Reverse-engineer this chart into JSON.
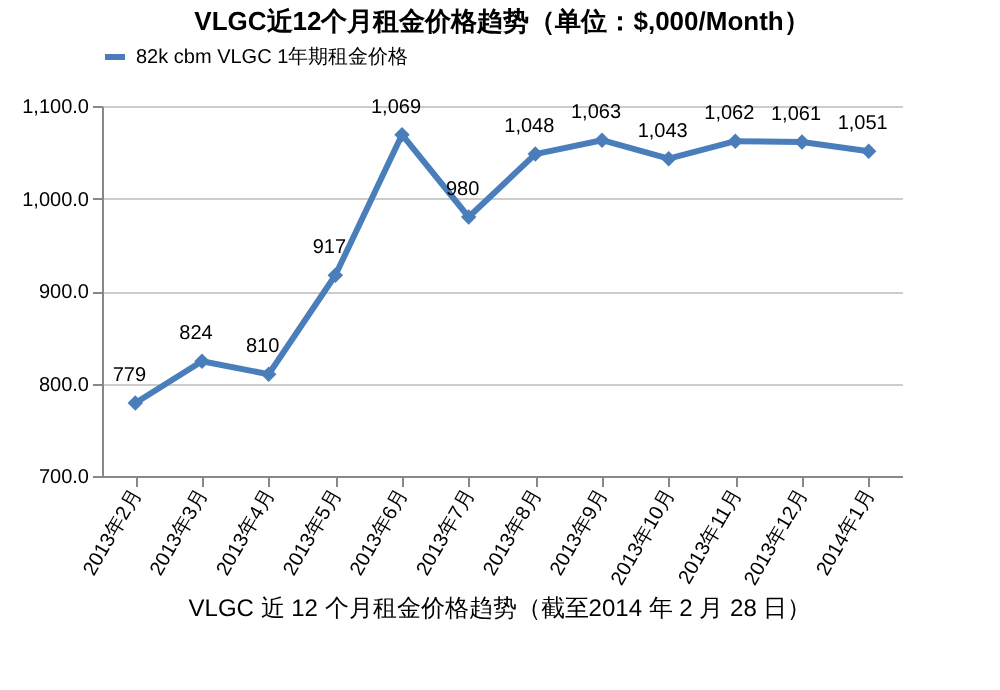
{
  "chart_data": {
    "type": "line",
    "title": "VLGC近12个月租金价格趋势（单位：$,000/Month）",
    "categories": [
      "2013年2月",
      "2013年3月",
      "2013年4月",
      "2013年5月",
      "2013年6月",
      "2013年7月",
      "2013年8月",
      "2013年9月",
      "2013年10月",
      "2013年11月",
      "2013年12月",
      "2014年1月"
    ],
    "series": [
      {
        "name": "82k cbm VLGC 1年期租金价格",
        "color": "#4a7ebb",
        "values": [
          779,
          824,
          810,
          917,
          1069,
          980,
          1048,
          1063,
          1043,
          1062,
          1061,
          1051
        ],
        "value_labels": [
          "779",
          "824",
          "810",
          "917",
          "1,069",
          "980",
          "1,048",
          "1,063",
          "1,043",
          "1,062",
          "1,061",
          "1,051"
        ]
      }
    ],
    "ylim": [
      700,
      1100
    ],
    "yticks": [
      {
        "value": 700,
        "label": "700.0"
      },
      {
        "value": 800,
        "label": "800.0"
      },
      {
        "value": 900,
        "label": "900.0"
      },
      {
        "value": 1000,
        "label": "1,000.0"
      },
      {
        "value": 1100,
        "label": "1,100.0"
      }
    ],
    "grid": "y",
    "legend": "top",
    "marker": "diamond",
    "line_style": "solid",
    "annotations": [
      "VLGC 近 12 个月租金价格趋势（截至2014 年 2 月 28 日）"
    ]
  }
}
